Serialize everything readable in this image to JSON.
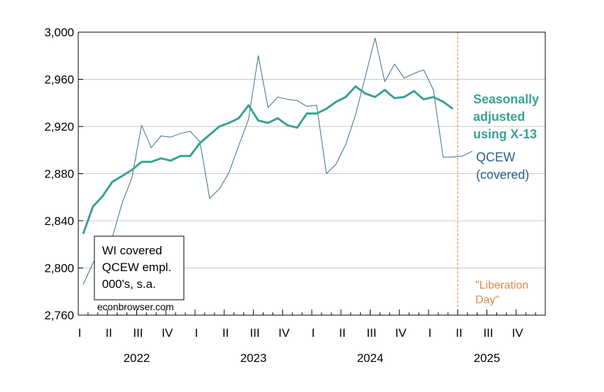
{
  "chart_data": {
    "type": "line",
    "x_start": "2022-01",
    "x_end": "2025-12",
    "ylim": [
      2760,
      3000
    ],
    "yticks": [
      2760,
      2800,
      2840,
      2880,
      2920,
      2960,
      3000
    ],
    "ytick_labels": [
      "2,760",
      "2,800",
      "2,840",
      "2,880",
      "2,920",
      "2,960",
      "3,000"
    ],
    "quarter_labels": [
      "I",
      "II",
      "III",
      "IV",
      "I",
      "II",
      "III",
      "IV",
      "I",
      "II",
      "III",
      "IV",
      "I",
      "II",
      "III",
      "IV"
    ],
    "year_labels": [
      "2022",
      "2023",
      "2024",
      "2025"
    ],
    "grid": "horizontal",
    "series": [
      {
        "name": "QCEW (covered)",
        "color": "#3f6a8a",
        "start": "2022-01",
        "values": [
          2786,
          2804,
          2818,
          2826,
          2855,
          2876,
          2921,
          2902,
          2912,
          2911,
          2914,
          2916,
          2907,
          2859,
          2867,
          2881,
          2904,
          2926,
          2980,
          2936,
          2945,
          2943,
          2942,
          2937,
          2938,
          2880,
          2888,
          2905,
          2930,
          2962,
          2995,
          2958,
          2973,
          2961,
          2965,
          2968,
          2951,
          2894,
          2894,
          2895,
          2899
        ]
      },
      {
        "name": "Seasonally adjusted using X-13",
        "color": "#3aa195",
        "start": "2022-01",
        "values": [
          2829,
          2852,
          2861,
          2873,
          2878,
          2883,
          2890,
          2890,
          2893,
          2891,
          2895,
          2895,
          2906,
          2913,
          2920,
          2923,
          2927,
          2938,
          2925,
          2923,
          2927,
          2921,
          2919,
          2931,
          2931,
          2935,
          2941,
          2945,
          2954,
          2948,
          2945,
          2951,
          2944,
          2945,
          2950,
          2943,
          2945,
          2941,
          2935
        ]
      }
    ],
    "event_line": {
      "date": "2025-04",
      "color": "#d58a4e"
    },
    "annotations": {
      "sa_label": [
        "Seasonally",
        "adjusted",
        "using X-13"
      ],
      "qcew_label": [
        "QCEW",
        "(covered)"
      ],
      "event_label": [
        "\"Liberation",
        "Day\""
      ],
      "box_label": [
        "WI covered",
        "QCEW empl.",
        "000's, s.a."
      ],
      "source": "econbrowser.com"
    }
  }
}
